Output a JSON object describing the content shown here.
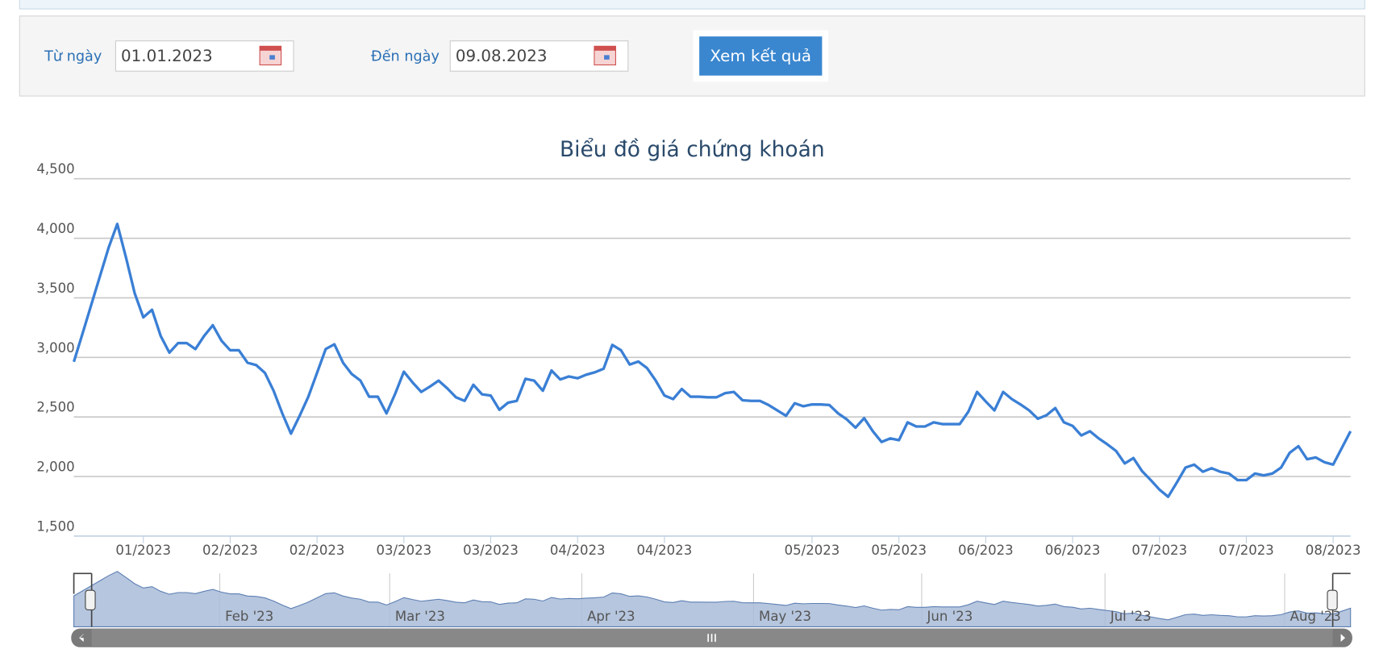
{
  "form": {
    "from_label": "Từ ngày",
    "from_value": "01.01.2023",
    "to_label": "Đến ngày",
    "to_value": "09.08.2023",
    "button": "Xem kết quả"
  },
  "chart_data": {
    "type": "line",
    "title": "Biểu đồ giá chứng khoán",
    "color": "#3a7fd5",
    "grid": true,
    "ylim": [
      1500,
      4500
    ],
    "yticks": [
      {
        "value": 1500,
        "label": "1,500"
      },
      {
        "value": 2000,
        "label": "2,000"
      },
      {
        "value": 2500,
        "label": "2,500"
      },
      {
        "value": 3000,
        "label": "3,000"
      },
      {
        "value": 3500,
        "label": "3,500"
      },
      {
        "value": 4000,
        "label": "4,000"
      },
      {
        "value": 4500,
        "label": "4,500"
      }
    ],
    "categories": [
      null,
      null,
      null,
      null,
      null,
      null,
      null,
      null,
      "01/2023",
      null,
      null,
      null,
      null,
      null,
      null,
      null,
      null,
      null,
      "02/2023",
      null,
      null,
      null,
      null,
      null,
      null,
      null,
      null,
      null,
      "02/2023",
      null,
      null,
      null,
      null,
      null,
      null,
      null,
      null,
      null,
      "03/2023",
      null,
      null,
      null,
      null,
      null,
      null,
      null,
      null,
      null,
      "03/2023",
      null,
      null,
      null,
      null,
      null,
      null,
      null,
      null,
      null,
      "04/2023",
      null,
      null,
      null,
      null,
      null,
      null,
      null,
      null,
      null,
      "04/2023",
      null,
      null,
      null,
      null,
      null,
      null,
      null,
      null,
      null,
      null,
      null,
      null,
      null,
      null,
      null,
      null,
      "05/2023",
      null,
      null,
      null,
      null,
      null,
      null,
      null,
      null,
      null,
      "05/2023",
      null,
      null,
      null,
      null,
      null,
      null,
      null,
      null,
      null,
      "06/2023",
      null,
      null,
      null,
      null,
      null,
      null,
      null,
      null,
      null,
      "06/2023",
      null,
      null,
      null,
      null,
      null,
      null,
      null,
      null,
      null,
      "07/2023",
      null,
      null,
      null,
      null,
      null,
      null,
      null,
      null,
      null,
      "07/2023",
      null,
      null,
      null,
      null,
      null,
      null,
      null,
      null,
      null,
      "08/2023",
      null,
      null
    ],
    "values": [
      2963,
      3200,
      3440,
      3680,
      3920,
      4120,
      3840,
      3540,
      3336,
      3400,
      3180,
      3040,
      3120,
      3120,
      3070,
      3180,
      3270,
      3140,
      3060,
      3060,
      2955,
      2935,
      2870,
      2720,
      2530,
      2360,
      2510,
      2670,
      2870,
      3070,
      3110,
      2955,
      2860,
      2805,
      2670,
      2670,
      2530,
      2695,
      2880,
      2790,
      2710,
      2755,
      2805,
      2740,
      2665,
      2635,
      2770,
      2690,
      2680,
      2560,
      2620,
      2635,
      2820,
      2805,
      2720,
      2890,
      2815,
      2840,
      2825,
      2855,
      2875,
      2905,
      3105,
      3060,
      2940,
      2965,
      2910,
      2805,
      2680,
      2650,
      2735,
      2670,
      2670,
      2665,
      2665,
      2700,
      2710,
      2640,
      2635,
      2635,
      2600,
      2555,
      2510,
      2615,
      2590,
      2605,
      2605,
      2600,
      2530,
      2480,
      2410,
      2490,
      2380,
      2290,
      2320,
      2305,
      2455,
      2420,
      2420,
      2455,
      2440,
      2440,
      2440,
      2545,
      2710,
      2630,
      2555,
      2710,
      2650,
      2605,
      2555,
      2485,
      2515,
      2575,
      2455,
      2425,
      2345,
      2380,
      2320,
      2270,
      2215,
      2110,
      2155,
      2045,
      1970,
      1890,
      1830,
      1950,
      2075,
      2100,
      2040,
      2070,
      2040,
      2025,
      1970,
      1970,
      2025,
      2010,
      2025,
      2075,
      2200,
      2255,
      2145,
      2160,
      2120,
      2100,
      2240,
      2380
    ],
    "navigator_labels": [
      "Feb '23",
      "Mar '23",
      "Apr '23",
      "May '23",
      "Jun '23",
      "Jul '23",
      "Aug '23"
    ]
  }
}
